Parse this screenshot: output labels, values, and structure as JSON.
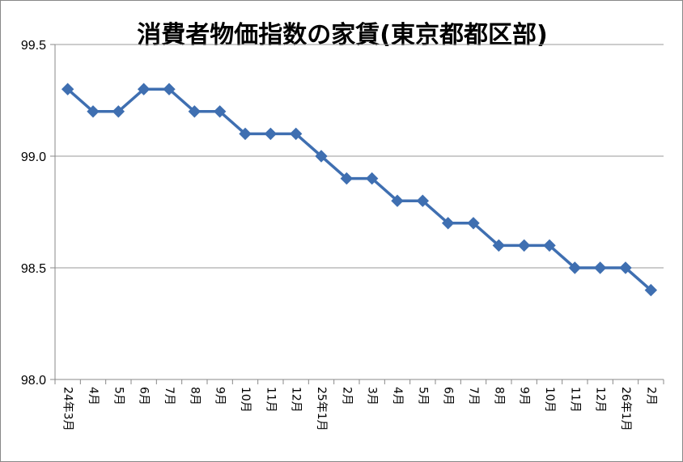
{
  "chart_data": {
    "type": "line",
    "title": "消費者物価指数の家賃(東京都都区部)",
    "xlabel": "",
    "ylabel": "",
    "categories": [
      "24年3月",
      "4月",
      "5月",
      "6月",
      "7月",
      "8月",
      "9月",
      "10月",
      "11月",
      "12月",
      "25年1月",
      "2月",
      "3月",
      "4月",
      "5月",
      "6月",
      "7月",
      "8月",
      "9月",
      "10月",
      "11月",
      "12月",
      "26年1月",
      "2月"
    ],
    "series": [
      {
        "values": [
          99.3,
          99.2,
          99.2,
          99.3,
          99.3,
          99.2,
          99.2,
          99.1,
          99.1,
          99.1,
          99.0,
          98.9,
          98.9,
          98.8,
          98.8,
          98.7,
          98.7,
          98.6,
          98.6,
          98.6,
          98.5,
          98.5,
          98.5,
          98.4
        ]
      }
    ],
    "yticks": [
      "98.0",
      "98.5",
      "99.0",
      "99.5"
    ],
    "ylim": [
      98.0,
      99.5
    ],
    "grid": true,
    "legend": "none",
    "colors": {
      "line": "#3f6fb1",
      "marker": "#3f6fb1",
      "grid": "#999999",
      "axis": "#888888"
    }
  }
}
